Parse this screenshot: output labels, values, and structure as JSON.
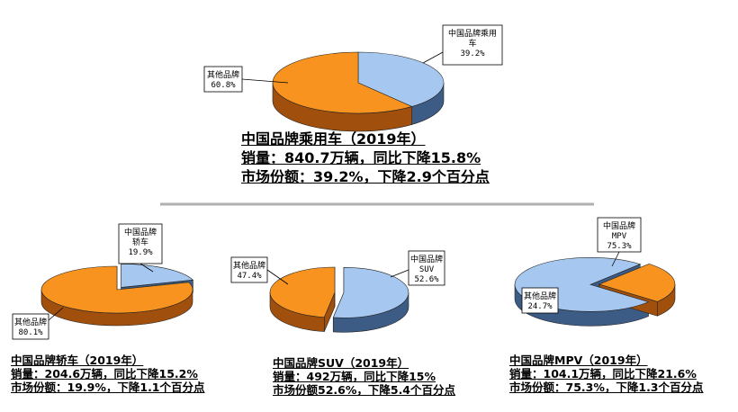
{
  "colors": {
    "domestic": "#a6c8f0",
    "domestic_side": "#3d5c85",
    "other": "#f7931e",
    "other_side": "#a0500c",
    "divider": "#b0b0b0"
  },
  "chart_data": [
    {
      "type": "pie",
      "title": "中国品牌乘用车（2019年）",
      "subtitle_lines": [
        "销量：840.7万辆，同比下降15.8%",
        "市场份额：39.2%，下降2.9个百分点"
      ],
      "slices": [
        {
          "label": "中国品牌乘用车",
          "label_lines": [
            "中国品牌乘用",
            "车"
          ],
          "value": 39.2,
          "display": "39.2%",
          "color": "#a6c8f0"
        },
        {
          "label": "其他品牌",
          "label_lines": [
            "其他品牌"
          ],
          "value": 60.8,
          "display": "60.8%",
          "color": "#f7931e"
        }
      ]
    },
    {
      "type": "pie",
      "title": "中国品牌轿车（2019年）",
      "subtitle_lines": [
        "销量：204.6万辆，同比下降15.2%",
        "市场份额：19.9%，下降1.1个百分点"
      ],
      "slices": [
        {
          "label": "中国品牌轿车",
          "label_lines": [
            "中国品牌",
            "轿车"
          ],
          "value": 19.9,
          "display": "19.9%",
          "color": "#a6c8f0"
        },
        {
          "label": "其他品牌",
          "label_lines": [
            "其他品牌"
          ],
          "value": 80.1,
          "display": "80.1%",
          "color": "#f7931e"
        }
      ]
    },
    {
      "type": "pie",
      "title": "中国品牌SUV（2019年）",
      "subtitle_lines": [
        "销量：492万辆，同比下降15%",
        "市场份额52.6%，下降5.4个百分点"
      ],
      "slices": [
        {
          "label": "中国品牌SUV",
          "label_lines": [
            "中国品牌",
            "SUV"
          ],
          "value": 52.6,
          "display": "52.6%",
          "color": "#a6c8f0"
        },
        {
          "label": "其他品牌",
          "label_lines": [
            "其他品牌"
          ],
          "value": 47.4,
          "display": "47.4%",
          "color": "#f7931e"
        }
      ]
    },
    {
      "type": "pie",
      "title": "中国品牌MPV（2019年）",
      "subtitle_lines": [
        "销量：104.1万辆，同比下降21.6%",
        "市场份额：75.3%，下降1.3个百分点"
      ],
      "slices": [
        {
          "label": "中国品牌MPV",
          "label_lines": [
            "中国品牌",
            "MPV"
          ],
          "value": 75.3,
          "display": "75.3%",
          "color": "#a6c8f0"
        },
        {
          "label": "其他品牌",
          "label_lines": [
            "其他品牌"
          ],
          "value": 24.7,
          "display": "24.7%",
          "color": "#f7931e"
        }
      ]
    }
  ]
}
